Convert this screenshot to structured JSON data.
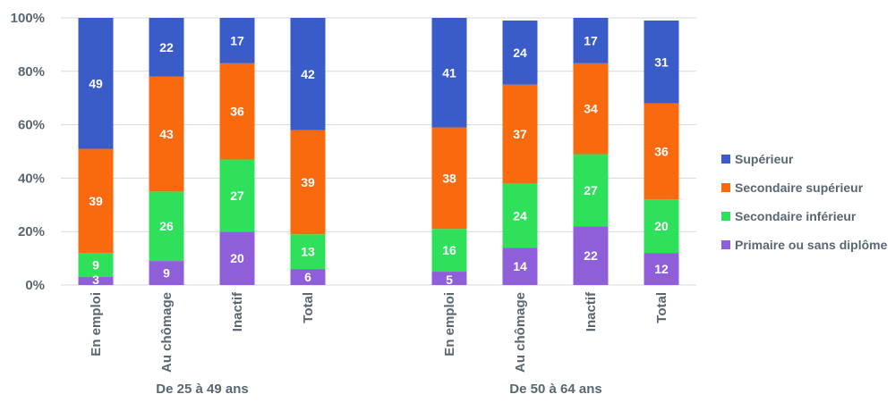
{
  "chart_data": {
    "type": "bar",
    "stacked": true,
    "percent": true,
    "ylim": [
      0,
      100
    ],
    "yticks": [
      "0%",
      "20%",
      "40%",
      "60%",
      "80%",
      "100%"
    ],
    "grid": true,
    "legend_position": "right",
    "groups": [
      {
        "label": "De 25 à 49 ans",
        "categories": [
          "En emploi",
          "Au chômage",
          "Inactif",
          "Total"
        ]
      },
      {
        "label": "De 50 à 64 ans",
        "categories": [
          "En emploi",
          "Au chômage",
          "Inactif",
          "Total"
        ]
      }
    ],
    "series": [
      {
        "name": "Primaire ou sans diplôme",
        "color": "#8f5fd9",
        "values": [
          3,
          9,
          20,
          6,
          5,
          14,
          22,
          12
        ]
      },
      {
        "name": "Secondaire inférieur",
        "color": "#2fe05a",
        "values": [
          9,
          26,
          27,
          13,
          16,
          24,
          27,
          20
        ]
      },
      {
        "name": "Secondaire supérieur",
        "color": "#f96a0e",
        "values": [
          39,
          43,
          36,
          39,
          38,
          37,
          34,
          36
        ]
      },
      {
        "name": "Supérieur",
        "color": "#3a5cc9",
        "values": [
          49,
          22,
          17,
          42,
          41,
          24,
          17,
          31
        ]
      }
    ],
    "legend_order": [
      "Supérieur",
      "Secondaire supérieur",
      "Secondaire inférieur",
      "Primaire ou sans diplôme"
    ]
  }
}
